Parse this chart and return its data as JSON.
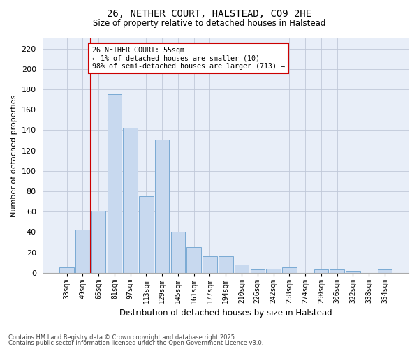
{
  "title1": "26, NETHER COURT, HALSTEAD, CO9 2HE",
  "title2": "Size of property relative to detached houses in Halstead",
  "xlabel": "Distribution of detached houses by size in Halstead",
  "ylabel": "Number of detached properties",
  "categories": [
    "33sqm",
    "49sqm",
    "65sqm",
    "81sqm",
    "97sqm",
    "113sqm",
    "129sqm",
    "145sqm",
    "161sqm",
    "177sqm",
    "194sqm",
    "210sqm",
    "226sqm",
    "242sqm",
    "258sqm",
    "274sqm",
    "290sqm",
    "306sqm",
    "322sqm",
    "338sqm",
    "354sqm"
  ],
  "values": [
    5,
    42,
    61,
    175,
    142,
    75,
    131,
    40,
    25,
    16,
    16,
    8,
    3,
    4,
    5,
    0,
    3,
    3,
    2,
    0,
    3
  ],
  "bar_color": "#c8d9ef",
  "bar_edge_color": "#7aaad4",
  "red_line_x": 1.5,
  "annotation_text": "26 NETHER COURT: 55sqm\n← 1% of detached houses are smaller (10)\n98% of semi-detached houses are larger (713) →",
  "annotation_box_color": "#ffffff",
  "annotation_box_edge": "#cc0000",
  "red_line_color": "#cc0000",
  "ylim": [
    0,
    230
  ],
  "yticks": [
    0,
    20,
    40,
    60,
    80,
    100,
    120,
    140,
    160,
    180,
    200,
    220
  ],
  "footer1": "Contains HM Land Registry data © Crown copyright and database right 2025.",
  "footer2": "Contains public sector information licensed under the Open Government Licence v3.0.",
  "bg_color": "#ffffff",
  "plot_bg_color": "#e8eef8"
}
